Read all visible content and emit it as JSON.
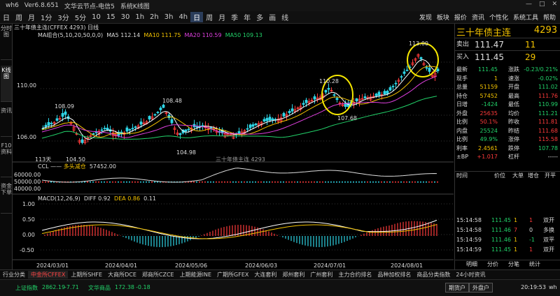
{
  "app": {
    "title": "wh6",
    "version": "Ver6.8.651",
    "menus": [
      "文华云节点-电信5",
      "系统K线图"
    ]
  },
  "toolbar": {
    "items": [
      "日",
      "周",
      "月",
      "1分",
      "3分",
      "5分",
      "10",
      "15",
      "30",
      "1h",
      "2h",
      "3h",
      "4h",
      "日",
      "周",
      "月",
      "季",
      "年",
      "多",
      "画",
      "线"
    ],
    "active_index": 13,
    "right_items": [
      "发现",
      "板块",
      "报价",
      "资讯",
      "个性化",
      "系统工具",
      "帮助"
    ]
  },
  "sidebar": {
    "tabs": [
      "分时图",
      "K线图",
      "资讯",
      "F10资料",
      "资金下单"
    ]
  },
  "chart": {
    "header": "三十年债主连(CFFEX 4293) 日线",
    "ma_label": "MA组合(5,10,20,50,0,0)",
    "ma5": "MA5 112.14",
    "ma10": "MA10 111.75",
    "ma20": "MA20 110.59",
    "ma50": "MA50 109.13",
    "price_ticks": [
      "110.00",
      "106.00"
    ],
    "high_labels": [
      "108.09",
      "108.48",
      "110.28",
      "113.00"
    ],
    "low_labels": [
      "104.50",
      "104.98",
      "107.68"
    ],
    "mid_label": "113天",
    "mid_label2": "多头减仓",
    "watermark": "三十年债主连 4293",
    "ccl_label": "CCL ——",
    "ccl_value": "57452.00",
    "ccl_ticks": [
      "60000.00",
      "50000.00",
      "40000.00"
    ],
    "macd_label": "MACD(12,26,9)",
    "diff": "DIFF 0.92",
    "dea": "DEA 0.86",
    "macd": "0.11",
    "macd_ticks": [
      "1.00",
      "0.50",
      "0.00",
      "-0.50"
    ],
    "dates": [
      "2024/03/01",
      "2024/04/01",
      "2024/05/06",
      "2024/06/03",
      "2024/07/01",
      "2024/08/01"
    ]
  },
  "panel": {
    "name": "三十年债主连",
    "code": "4293",
    "sell": {
      "label": "卖出",
      "price": "111.47",
      "vol": "11"
    },
    "buy": {
      "label": "买入",
      "price": "111.45",
      "vol": "29"
    },
    "stats": [
      [
        "最新",
        "111.45",
        "涨跌",
        "-0.23/0.21%"
      ],
      [
        "现手",
        "1",
        "速涨",
        "-0.02%"
      ],
      [
        "总量",
        "51159",
        "开盘",
        "111.02"
      ],
      [
        "持仓",
        "57452",
        "最高",
        "111.76"
      ],
      [
        "日增",
        "-1424",
        "最低",
        "110.99"
      ],
      [
        "外盘",
        "25635",
        "均价",
        "111.21"
      ],
      [
        "比例",
        "50.1%",
        "昨收",
        "111.81"
      ],
      [
        "内盘",
        "25524",
        "昨结",
        "111.68"
      ],
      [
        "比例",
        "49.9%",
        "涨停",
        "115.58"
      ],
      [
        "利率",
        "2.4561",
        "跌停",
        "107.78"
      ],
      [
        "±BP",
        "+1.017",
        "杠杆",
        "-----"
      ]
    ],
    "trade_header": [
      "时间",
      "价位",
      "大单",
      "增仓",
      "开平"
    ],
    "trades": [
      [
        "15:14:58",
        "111.45",
        "1",
        "1",
        "双开"
      ],
      [
        "15:14:58",
        "111.46",
        "7",
        "0",
        "多换"
      ],
      [
        "15:14:59",
        "111.46",
        "1",
        "-1",
        "双平"
      ],
      [
        "15:14:59",
        "111.45",
        "1",
        "1",
        "双开"
      ]
    ],
    "bottom_tabs": [
      "明细",
      "分价",
      "分笔",
      "统计"
    ]
  },
  "bottomnav": {
    "items": [
      "行业分类",
      "中金所CFFEX",
      "上期所SHFE",
      "大商所DCE",
      "郑商所CZCE",
      "上期能源INE",
      "广期所GFEX",
      "大连套利",
      "郑州套利",
      "广州套利",
      "主力合约排名",
      "品种加权排名",
      "商品分类指数",
      "24小时资讯"
    ],
    "active_index": 1
  },
  "status": {
    "index1_name": "上证指数",
    "index1_value": "2862.19",
    "index1_change": "-7.71",
    "index2_name": "文华商品",
    "index2_value": "172.38",
    "index2_change": "-0.18",
    "btn_new": "期货户",
    "btn_out": "外盘户",
    "time": "20:19:53",
    "user": "wh"
  },
  "colors": {
    "up": "#ff3b3b",
    "down": "#22d36a",
    "bull_candle": "#ff3b3b",
    "bear_candle": "#2ed5e6",
    "accent": "#f5c400"
  }
}
